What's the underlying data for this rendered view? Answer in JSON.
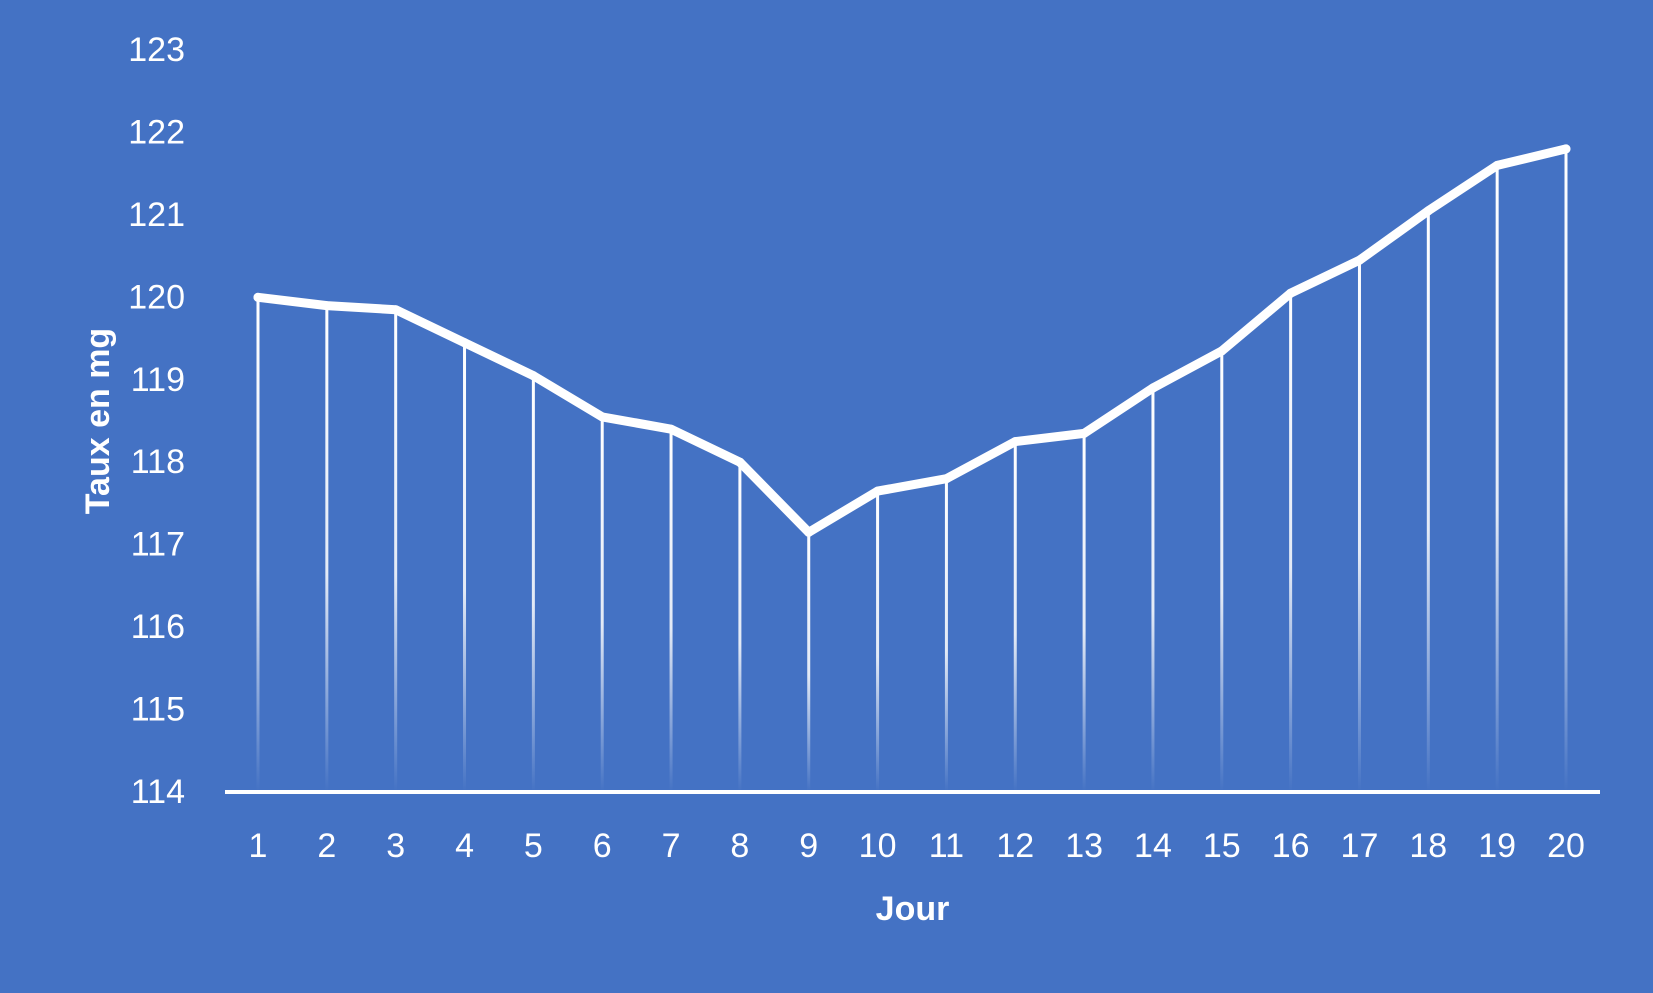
{
  "chart_data": {
    "type": "line",
    "title": "",
    "xlabel": "Jour",
    "ylabel": "Taux en mg",
    "x": [
      1,
      2,
      3,
      4,
      5,
      6,
      7,
      8,
      9,
      10,
      11,
      12,
      13,
      14,
      15,
      16,
      17,
      18,
      19,
      20
    ],
    "x_tick_labels": [
      "1",
      "2",
      "3",
      "4",
      "5",
      "6",
      "7",
      "8",
      "9",
      "10",
      "11",
      "12",
      "13",
      "14",
      "15",
      "16",
      "17",
      "18",
      "19",
      "20"
    ],
    "y_ticks": [
      114,
      115,
      116,
      117,
      118,
      119,
      120,
      121,
      122,
      123
    ],
    "y_tick_labels": [
      "114",
      "115",
      "116",
      "117",
      "118",
      "119",
      "120",
      "121",
      "122",
      "123"
    ],
    "ylim": [
      114,
      123
    ],
    "series": [
      {
        "values": [
          120.0,
          119.9,
          119.85,
          119.45,
          119.05,
          118.55,
          118.4,
          118.0,
          117.15,
          117.65,
          117.8,
          118.25,
          118.35,
          118.9,
          119.35,
          120.05,
          120.45,
          121.05,
          121.6,
          121.8
        ]
      }
    ],
    "drop_lines": true,
    "grid": false,
    "legend": "none",
    "colors": {
      "background": "#4472c4",
      "line": "#ffffff",
      "text": "#ffffff"
    }
  }
}
